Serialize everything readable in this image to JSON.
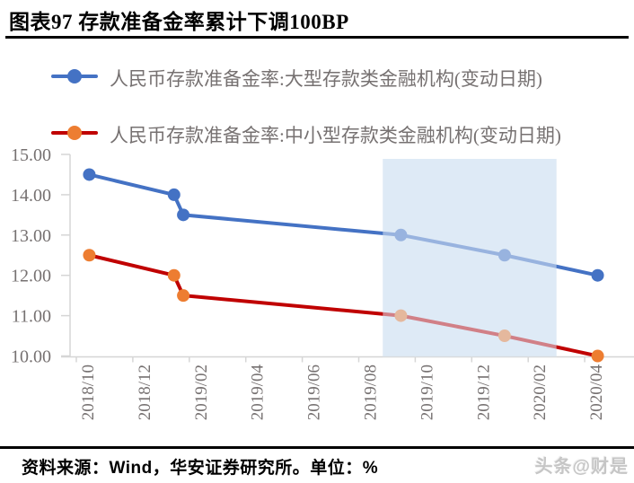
{
  "page": {
    "title": "图表97 存款准备金率累计下调100BP",
    "source_note": "资料来源：Wind，华安证券研究所。单位：%",
    "watermark": "头条@财是"
  },
  "legend": {
    "items": [
      {
        "label": "人民币存款准备金率:大型存款类金融机构(变动日期)",
        "line_color": "#4472C4",
        "marker_color": "#4472C4",
        "text_color": "#767171"
      },
      {
        "label": "人民币存款准备金率:中小型存款类金融机构(变动日期)",
        "line_color": "#C00000",
        "marker_color": "#ED7D31",
        "text_color": "#767171"
      }
    ]
  },
  "chart_data": {
    "type": "line",
    "title": "存款准备金率累计下调100BP",
    "unit": "%",
    "series": [
      {
        "name": "人民币存款准备金率:大型存款类金融机构(变动日期)",
        "color": "#4472C4",
        "marker_color": "#4472C4",
        "points": [
          [
            "2018/10/15",
            14.5
          ],
          [
            "2019/01/15",
            14.0
          ],
          [
            "2019/01/25",
            13.5
          ],
          [
            "2019/09/16",
            13.0
          ],
          [
            "2020/01/06",
            12.5
          ],
          [
            "2020/04/15",
            12.0
          ]
        ]
      },
      {
        "name": "人民币存款准备金率:中小型存款类金融机构(变动日期)",
        "color": "#C00000",
        "marker_color": "#ED7D31",
        "points": [
          [
            "2018/10/15",
            12.5
          ],
          [
            "2019/01/15",
            12.0
          ],
          [
            "2019/01/25",
            11.5
          ],
          [
            "2019/09/16",
            11.0
          ],
          [
            "2020/01/06",
            10.5
          ],
          [
            "2020/04/15",
            10.0
          ]
        ]
      }
    ],
    "y_axis": {
      "min": 10,
      "max": 15,
      "step": 1,
      "tick_labels": [
        "15.00",
        "14.00",
        "13.00",
        "12.00",
        "11.00",
        "10.00"
      ]
    },
    "x_axis": {
      "tick_labels": [
        "2018/10",
        "2018/12",
        "2019/02",
        "2019/04",
        "2019/06",
        "2019/08",
        "2019/10",
        "2019/12",
        "2020/02",
        "2020/04"
      ],
      "label_rotation_deg": -90
    },
    "highlight_band": {
      "x_start": "2019/08/27",
      "x_end": "2020/03/01",
      "color": "#DEEAF6"
    },
    "style": {
      "axis_color": "#D6D6D6",
      "tick_label_color": "#767171",
      "line_width": 4,
      "marker_radius": 7,
      "grid": "off",
      "legend_position": "top-left"
    }
  }
}
